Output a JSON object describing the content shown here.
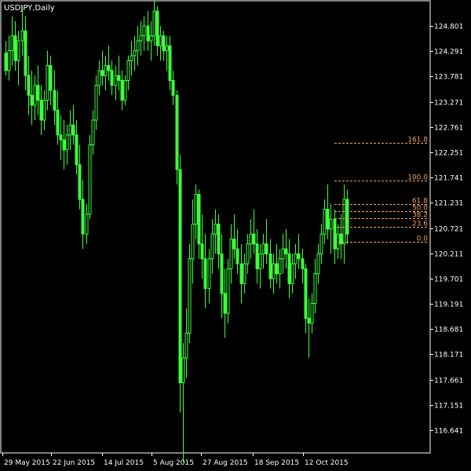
{
  "chart_data": {
    "type": "candlestick",
    "symbol": "USDJPY,Daily",
    "colors": {
      "background": "#000000",
      "candle": "#3aff3a",
      "axis": "#ffffff",
      "fibonacci": "#f4a460"
    },
    "y_axis": {
      "ticks": [
        "124.801",
        "124.291",
        "123.781",
        "123.271",
        "122.761",
        "122.251",
        "121.741",
        "121.231",
        "120.721",
        "120.211",
        "119.701",
        "119.191",
        "118.681",
        "118.171",
        "117.661",
        "117.151",
        "116.641"
      ],
      "range": [
        116.0,
        125.3
      ]
    },
    "x_axis": {
      "ticks": [
        "29 May 2015",
        "22 Jun 2015",
        "14 Jul 2015",
        "5 Aug 2015",
        "27 Aug 2015",
        "18 Sep 2015",
        "12 Oct 2015"
      ]
    },
    "candles": [
      [
        124.25,
        124.5,
        123.8,
        123.9
      ],
      [
        123.9,
        124.6,
        123.7,
        124.3
      ],
      [
        124.3,
        125.0,
        124.0,
        124.6
      ],
      [
        124.6,
        124.9,
        123.9,
        124.1
      ],
      [
        124.1,
        124.7,
        123.6,
        124.5
      ],
      [
        124.5,
        125.2,
        124.2,
        124.7
      ],
      [
        124.7,
        125.0,
        123.5,
        123.8
      ],
      [
        123.8,
        124.2,
        123.0,
        123.4
      ],
      [
        123.4,
        123.9,
        122.8,
        123.2
      ],
      [
        123.2,
        123.8,
        122.9,
        123.6
      ],
      [
        123.6,
        124.0,
        123.0,
        123.3
      ],
      [
        123.3,
        123.6,
        122.6,
        122.9
      ],
      [
        122.9,
        123.5,
        122.7,
        123.3
      ],
      [
        123.3,
        124.3,
        123.1,
        124.0
      ],
      [
        124.0,
        124.2,
        123.2,
        123.5
      ],
      [
        123.5,
        123.9,
        122.8,
        123.1
      ],
      [
        123.1,
        123.5,
        122.4,
        122.6
      ],
      [
        122.6,
        123.0,
        122.1,
        122.5
      ],
      [
        122.5,
        122.9,
        121.9,
        122.3
      ],
      [
        122.3,
        122.8,
        122.0,
        122.6
      ],
      [
        122.6,
        123.1,
        122.3,
        122.8
      ],
      [
        122.8,
        123.2,
        122.4,
        122.6
      ],
      [
        122.6,
        122.9,
        121.8,
        122.0
      ],
      [
        122.0,
        122.4,
        121.1,
        121.3
      ],
      [
        121.3,
        121.7,
        120.3,
        120.6
      ],
      [
        120.6,
        121.2,
        120.4,
        121.0
      ],
      [
        121.0,
        122.6,
        120.9,
        122.4
      ],
      [
        122.4,
        123.1,
        122.2,
        122.9
      ],
      [
        122.9,
        123.8,
        122.7,
        123.6
      ],
      [
        123.6,
        124.1,
        123.4,
        123.9
      ],
      [
        123.9,
        124.3,
        123.6,
        123.8
      ],
      [
        123.8,
        124.2,
        123.5,
        124.0
      ],
      [
        124.0,
        124.4,
        123.7,
        123.9
      ],
      [
        123.9,
        124.1,
        123.4,
        123.6
      ],
      [
        123.6,
        124.0,
        123.3,
        123.8
      ],
      [
        123.8,
        124.2,
        123.5,
        123.7
      ],
      [
        123.7,
        123.9,
        123.1,
        123.3
      ],
      [
        123.3,
        123.8,
        123.2,
        123.7
      ],
      [
        123.7,
        124.2,
        123.5,
        124.1
      ],
      [
        124.1,
        124.5,
        123.8,
        124.2
      ],
      [
        124.2,
        124.6,
        123.9,
        124.3
      ],
      [
        124.3,
        124.8,
        124.0,
        124.5
      ],
      [
        124.5,
        124.9,
        124.2,
        124.6
      ],
      [
        124.6,
        125.0,
        124.3,
        124.8
      ],
      [
        124.8,
        125.1,
        124.3,
        124.5
      ],
      [
        124.5,
        124.9,
        124.1,
        124.6
      ],
      [
        124.6,
        125.3,
        124.4,
        125.1
      ],
      [
        125.1,
        125.2,
        124.2,
        124.4
      ],
      [
        124.4,
        124.8,
        124.1,
        124.6
      ],
      [
        124.6,
        124.7,
        124.1,
        124.3
      ],
      [
        124.3,
        124.6,
        123.9,
        124.4
      ],
      [
        124.4,
        124.6,
        123.5,
        123.7
      ],
      [
        123.7,
        123.9,
        123.2,
        123.4
      ],
      [
        123.4,
        123.5,
        121.6,
        121.9
      ],
      [
        121.9,
        122.2,
        117.0,
        117.6
      ],
      [
        117.6,
        118.4,
        116.0,
        118.1
      ],
      [
        118.1,
        119.1,
        117.7,
        118.6
      ],
      [
        118.6,
        120.4,
        118.4,
        120.1
      ],
      [
        120.1,
        121.3,
        119.6,
        120.8
      ],
      [
        120.8,
        121.6,
        120.5,
        121.4
      ],
      [
        121.4,
        121.5,
        120.1,
        120.4
      ],
      [
        120.4,
        121.0,
        119.7,
        120.1
      ],
      [
        120.1,
        120.6,
        119.1,
        119.5
      ],
      [
        119.5,
        120.3,
        119.2,
        120.1
      ],
      [
        120.1,
        120.9,
        119.8,
        120.6
      ],
      [
        120.6,
        121.1,
        120.2,
        120.8
      ],
      [
        120.8,
        121.0,
        119.9,
        120.2
      ],
      [
        120.2,
        120.6,
        118.9,
        119.4
      ],
      [
        119.4,
        119.9,
        118.5,
        119.0
      ],
      [
        119.0,
        120.1,
        118.8,
        119.9
      ],
      [
        119.9,
        120.8,
        119.6,
        120.5
      ],
      [
        120.5,
        121.0,
        120.1,
        120.3
      ],
      [
        120.3,
        120.7,
        119.8,
        120.0
      ],
      [
        120.0,
        120.4,
        119.2,
        119.6
      ],
      [
        119.6,
        120.2,
        119.4,
        120.0
      ],
      [
        120.0,
        120.6,
        119.8,
        120.4
      ],
      [
        120.4,
        120.9,
        120.1,
        120.6
      ],
      [
        120.6,
        121.1,
        120.2,
        120.4
      ],
      [
        120.4,
        120.7,
        119.6,
        119.9
      ],
      [
        119.9,
        120.4,
        119.5,
        120.2
      ],
      [
        120.2,
        120.6,
        119.9,
        120.4
      ],
      [
        120.4,
        120.9,
        120.0,
        120.2
      ],
      [
        120.2,
        120.5,
        119.5,
        119.7
      ],
      [
        119.7,
        120.2,
        119.4,
        120.0
      ],
      [
        120.0,
        120.4,
        119.6,
        119.8
      ],
      [
        119.8,
        120.3,
        119.5,
        120.1
      ],
      [
        120.1,
        120.6,
        119.8,
        120.3
      ],
      [
        120.3,
        120.7,
        119.9,
        120.2
      ],
      [
        120.2,
        120.5,
        119.3,
        119.6
      ],
      [
        119.6,
        120.2,
        119.4,
        120.0
      ],
      [
        120.0,
        120.4,
        119.7,
        120.2
      ],
      [
        120.2,
        120.6,
        119.9,
        120.1
      ],
      [
        120.1,
        120.3,
        119.6,
        119.9
      ],
      [
        119.9,
        120.0,
        118.6,
        118.9
      ],
      [
        118.9,
        119.3,
        118.1,
        118.8
      ],
      [
        118.8,
        119.4,
        118.6,
        119.2
      ],
      [
        119.2,
        120.1,
        119.0,
        119.8
      ],
      [
        119.8,
        120.4,
        119.6,
        120.2
      ],
      [
        120.2,
        120.8,
        120.0,
        120.6
      ],
      [
        120.6,
        121.3,
        120.4,
        121.1
      ],
      [
        121.1,
        121.6,
        120.5,
        120.7
      ],
      [
        120.7,
        121.2,
        120.2,
        120.9
      ],
      [
        120.9,
        121.1,
        120.0,
        120.3
      ],
      [
        120.3,
        120.8,
        120.1,
        120.6
      ],
      [
        120.6,
        121.0,
        120.1,
        120.4
      ],
      [
        120.4,
        121.6,
        120.0,
        121.3
      ],
      [
        121.3,
        121.5,
        120.4,
        120.6
      ]
    ],
    "fibonacci": {
      "levels": [
        {
          "label": "161.8",
          "price": 122.44
        },
        {
          "label": "100.0",
          "price": 121.68
        },
        {
          "label": "61.8",
          "price": 121.21
        },
        {
          "label": "50.0",
          "price": 121.06
        },
        {
          "label": "38.2",
          "price": 120.92
        },
        {
          "label": "23.6",
          "price": 120.74
        },
        {
          "label": "0.0",
          "price": 120.45
        }
      ]
    }
  }
}
